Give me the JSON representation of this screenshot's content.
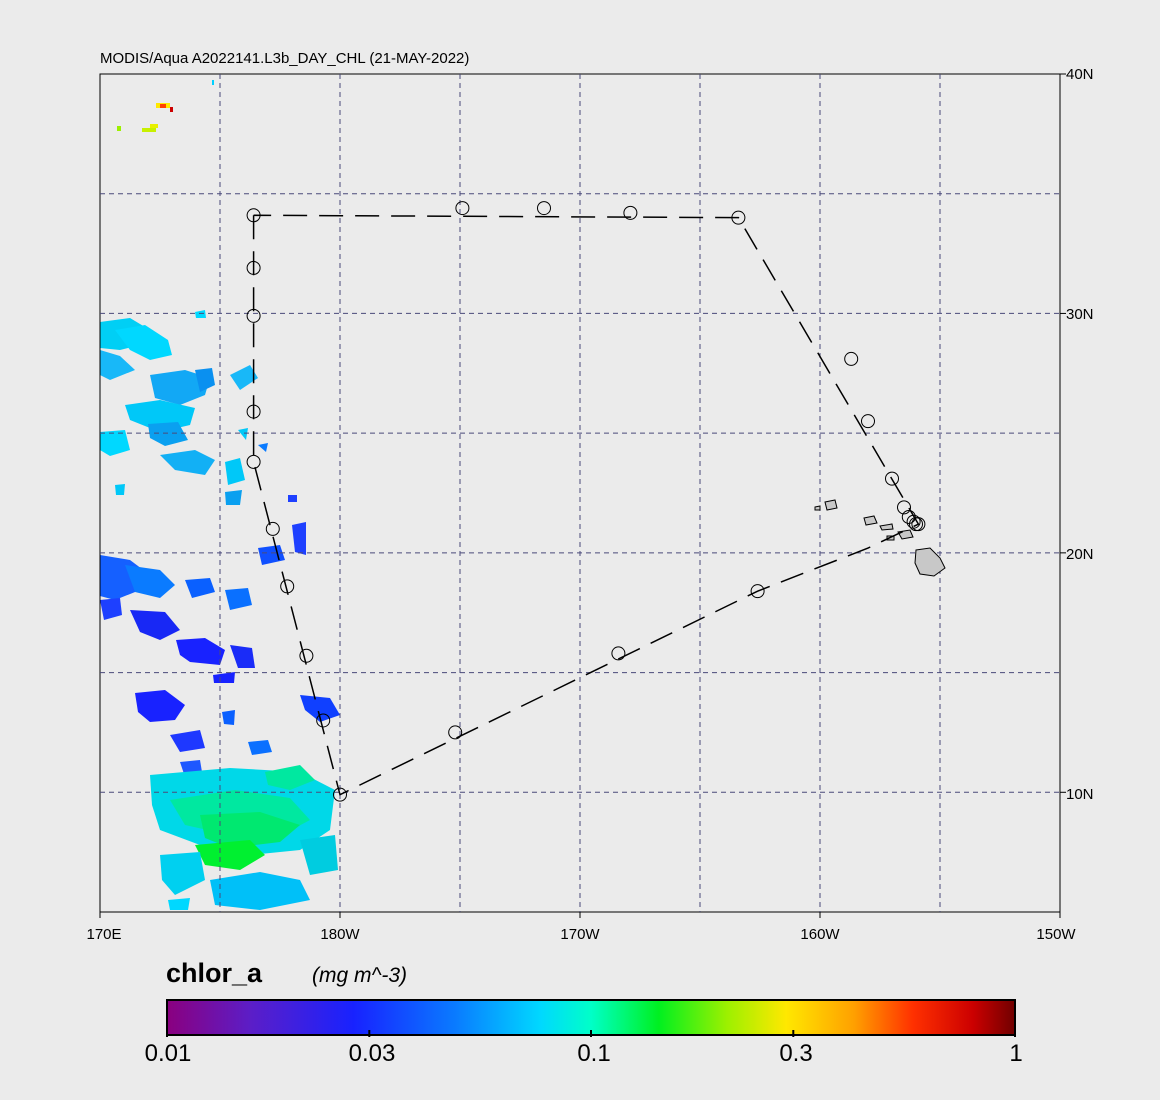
{
  "title": "MODIS/Aqua A2022141.L3b_DAY_CHL (21-MAY-2022)",
  "lat_labels": [
    "40N",
    "30N",
    "20N",
    "10N"
  ],
  "lon_labels": [
    "170E",
    "180W",
    "170W",
    "160W",
    "150W"
  ],
  "colorbar": {
    "variable": "chlor_a",
    "units": "(mg m^-3)",
    "ticks": [
      "0.01",
      "0.03",
      "0.1",
      "0.3",
      "1"
    ]
  },
  "colors": {
    "background": "#ebebeb",
    "grid": "#4a4a7a",
    "land": "#c8c8c8"
  },
  "map": {
    "lon_range_east": [
      170,
      210
    ],
    "lat_range": [
      5,
      40
    ],
    "grid_step_deg": 5
  },
  "track": {
    "stations": [
      [
        176.4,
        34.1
      ],
      [
        176.4,
        31.9
      ],
      [
        176.4,
        29.9
      ],
      [
        176.4,
        25.9
      ],
      [
        176.4,
        23.8
      ],
      [
        177.2,
        21.0
      ],
      [
        177.8,
        18.6
      ],
      [
        178.6,
        15.7
      ],
      [
        179.3,
        13.0
      ],
      [
        180.0,
        9.9
      ],
      [
        184.8,
        12.5
      ],
      [
        191.6,
        15.8
      ],
      [
        197.4,
        18.4
      ],
      [
        201.3,
        28.1
      ],
      [
        202.0,
        25.5
      ],
      [
        203.0,
        23.1
      ],
      [
        203.5,
        21.9
      ],
      [
        203.7,
        21.5
      ],
      [
        203.9,
        21.3
      ],
      [
        204.0,
        21.2
      ],
      [
        204.1,
        21.2
      ],
      [
        185.1,
        34.4
      ],
      [
        188.5,
        34.4
      ],
      [
        192.1,
        34.2
      ],
      [
        196.6,
        34.0
      ]
    ],
    "route": [
      [
        176.4,
        34.1
      ],
      [
        176.4,
        23.8
      ],
      [
        180.0,
        9.9
      ],
      [
        197.4,
        18.4
      ],
      [
        202.0,
        20.2
      ],
      [
        204.1,
        21.2
      ],
      [
        196.6,
        34.0
      ],
      [
        176.4,
        34.1
      ]
    ]
  }
}
